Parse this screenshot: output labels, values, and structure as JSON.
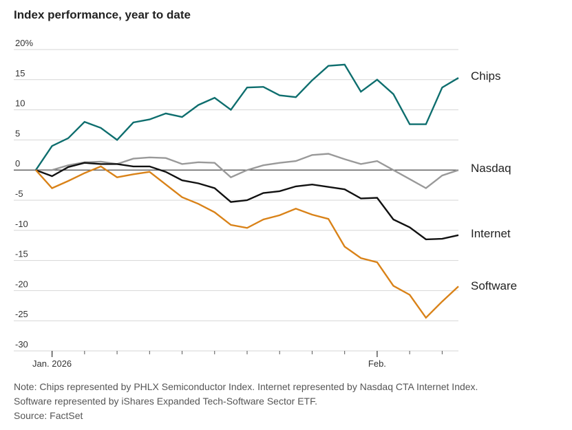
{
  "chart_data": {
    "type": "line",
    "title": "Index performance, year to date",
    "ylim": [
      -30,
      20
    ],
    "ylabel": "",
    "xlabel": "",
    "y_ticks": [
      {
        "value": 20,
        "label": "20%"
      },
      {
        "value": 15,
        "label": "15"
      },
      {
        "value": 10,
        "label": "10"
      },
      {
        "value": 5,
        "label": "5"
      },
      {
        "value": 0,
        "label": "0"
      },
      {
        "value": -5,
        "label": "-5"
      },
      {
        "value": -10,
        "label": "-10"
      },
      {
        "value": -15,
        "label": "-15"
      },
      {
        "value": -20,
        "label": "-20"
      },
      {
        "value": -25,
        "label": "-25"
      },
      {
        "value": -30,
        "label": "-30"
      }
    ],
    "x_ticks": [
      {
        "index": 1,
        "label": "Jan. 2026"
      },
      {
        "index": 21,
        "label": "Feb."
      }
    ],
    "x_minor_ticks": [
      1,
      3,
      5,
      7,
      9,
      11,
      13,
      15,
      17,
      19,
      21,
      23,
      25
    ],
    "num_points": 27,
    "series": [
      {
        "name": "Chips",
        "color": "#0e6e6e",
        "values": [
          0,
          4,
          5.3,
          8,
          7,
          5,
          7.9,
          8.4,
          9.4,
          8.8,
          10.8,
          12,
          10,
          13.7,
          13.8,
          12.4,
          12.1,
          14.9,
          17.3,
          17.5,
          13,
          15,
          12.6,
          7.6,
          7.6,
          13.7,
          15.3
        ]
      },
      {
        "name": "Nasdaq",
        "color": "#999999",
        "values": [
          0,
          0,
          0.8,
          1.3,
          1.4,
          1,
          1.9,
          2.1,
          2,
          1,
          1.3,
          1.2,
          -1.2,
          0,
          0.8,
          1.2,
          1.5,
          2.5,
          2.7,
          1.8,
          1,
          1.5,
          0,
          -1.5,
          -3,
          -0.9,
          0
        ]
      },
      {
        "name": "Internet",
        "color": "#111111",
        "values": [
          0,
          -1,
          0.5,
          1.2,
          1,
          1,
          0.6,
          0.6,
          -0.3,
          -1.7,
          -2.2,
          -3,
          -5.3,
          -5,
          -3.8,
          -3.5,
          -2.7,
          -2.4,
          -2.8,
          -3.2,
          -4.7,
          -4.6,
          -8.2,
          -9.5,
          -11.5,
          -11.4,
          -10.8
        ]
      },
      {
        "name": "Software",
        "color": "#d98218",
        "values": [
          0,
          -3,
          -1.8,
          -0.5,
          0.6,
          -1.2,
          -0.7,
          -0.3,
          -2.4,
          -4.5,
          -5.6,
          -7,
          -9.1,
          -9.6,
          -8.2,
          -7.5,
          -6.4,
          -7.4,
          -8.1,
          -12.7,
          -14.6,
          -15.3,
          -19.2,
          -20.7,
          -24.5,
          -21.8,
          -19.3
        ]
      }
    ]
  },
  "notes": {
    "line1": "Note: Chips represented by PHLX Semiconductor Index. Internet represented by Nasdaq CTA Internet Index.",
    "line2": "Software represented by iShares Expanded Tech-Software Sector ETF.",
    "source": "Source: FactSet"
  }
}
